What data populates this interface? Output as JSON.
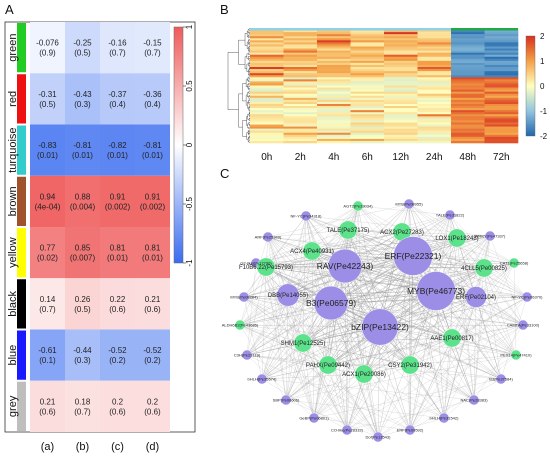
{
  "panels": {
    "a": "A",
    "b": "B",
    "c": "C"
  },
  "chart_data": [
    {
      "type": "heatmap",
      "panel": "A",
      "rows": [
        "green",
        "red",
        "turquoise",
        "brown",
        "yellow",
        "black",
        "blue",
        "grey"
      ],
      "row_colors": [
        "#22cc22",
        "#ee1111",
        "#33cccc",
        "#a0522d",
        "#ffff00",
        "#000000",
        "#1a1aff",
        "#bebebe"
      ],
      "columns": [
        "(a)",
        "(b)",
        "(c)",
        "(d)"
      ],
      "values": [
        [
          -0.076,
          -0.25,
          -0.16,
          -0.15
        ],
        [
          -0.31,
          -0.43,
          -0.37,
          -0.36
        ],
        [
          -0.83,
          -0.81,
          -0.82,
          -0.81
        ],
        [
          0.94,
          0.88,
          0.91,
          0.91
        ],
        [
          0.77,
          0.85,
          0.81,
          0.81
        ],
        [
          0.14,
          0.26,
          0.22,
          0.21
        ],
        [
          -0.61,
          -0.44,
          -0.52,
          -0.52
        ],
        [
          0.21,
          0.18,
          0.2,
          0.2
        ]
      ],
      "labels": [
        [
          "-0.076",
          "-0.25",
          "-0.16",
          "-0.15"
        ],
        [
          "-0.31",
          "-0.43",
          "-0.37",
          "-0.36"
        ],
        [
          "-0.83",
          "-0.81",
          "-0.82",
          "-0.81"
        ],
        [
          "0.94",
          "0.88",
          "0.91",
          "0.91"
        ],
        [
          "0.77",
          "0.85",
          "0.81",
          "0.81"
        ],
        [
          "0.14",
          "0.26",
          "0.22",
          "0.21"
        ],
        [
          "-0.61",
          "-0.44",
          "-0.52",
          "-0.52"
        ],
        [
          "0.21",
          "0.18",
          "0.2",
          "0.2"
        ]
      ],
      "pvalues": [
        [
          "(0.9)",
          "(0.5)",
          "(0.7)",
          "(0.7)"
        ],
        [
          "(0.5)",
          "(0.3)",
          "(0.4)",
          "(0.4)"
        ],
        [
          "(0.01)",
          "(0.01)",
          "(0.01)",
          "(0.01)"
        ],
        [
          "(4e-04)",
          "(0.004)",
          "(0.002)",
          "(0.002)"
        ],
        [
          "(0.02)",
          "(0.007)",
          "(0.01)",
          "(0.01)"
        ],
        [
          "(0.7)",
          "(0.5)",
          "(0.6)",
          "(0.6)"
        ],
        [
          "(0.1)",
          "(0.3)",
          "(0.2)",
          "(0.2)"
        ],
        [
          "(0.6)",
          "(0.7)",
          "(0.6)",
          "(0.6)"
        ]
      ],
      "colorbar": {
        "range": [
          -1,
          1
        ],
        "ticks": [
          "1",
          "0.5",
          "0",
          "-0.5",
          "-1"
        ],
        "tick_values": [
          1,
          0.5,
          0,
          -0.5,
          -1
        ],
        "low_color": "#3a6cf0",
        "mid_color": "#ffffff",
        "high_color": "#ef5b5b"
      }
    },
    {
      "type": "heatmap",
      "panel": "B",
      "x": [
        "0h",
        "2h",
        "4h",
        "6h",
        "12h",
        "24h",
        "48h",
        "72h"
      ],
      "colorbar": {
        "range": [
          -2,
          2
        ],
        "ticks": [
          "2",
          "1",
          "0",
          "-1",
          "-2"
        ],
        "tick_values": [
          2,
          1,
          0,
          -1,
          -2
        ]
      },
      "dendrogram": "left"
    },
    {
      "type": "network",
      "panel": "C",
      "hubs": [
        "ERF(Pe22321)",
        "MYB(Pe46773)",
        "RAV(Pe42243)",
        "B3(Pe06579)",
        "bZIP(Pe13422)"
      ],
      "nodes": [
        {
          "label": "ERF(Pe22321)",
          "color": "purple",
          "size": 3
        },
        {
          "label": "MYB(Pe46773)",
          "color": "purple",
          "size": 3
        },
        {
          "label": "RAV(Pe42243)",
          "color": "purple",
          "size": 2.6
        },
        {
          "label": "B3(Pe06579)",
          "color": "purple",
          "size": 2.6
        },
        {
          "label": "bZIP(Pe13422)",
          "color": "purple",
          "size": 2.8
        },
        {
          "label": "DBB(Pe14055)",
          "color": "purple",
          "size": 1.6
        },
        {
          "label": "ERF(Pe02104)",
          "color": "purple",
          "size": 1.5
        },
        {
          "label": "TALE(Pe37175)",
          "color": "green",
          "size": 1.3
        },
        {
          "label": "ACX2(Pe27283)",
          "color": "green",
          "size": 1.3
        },
        {
          "label": "ACX4(Pe40931)",
          "color": "green",
          "size": 1.3
        },
        {
          "label": "LOX1(Pe18248)",
          "color": "green",
          "size": 1.3
        },
        {
          "label": "F10B6.22(Pe15793)",
          "color": "green",
          "size": 1.3
        },
        {
          "label": "4CLL5(Pe00825)",
          "color": "green",
          "size": 1.3
        },
        {
          "label": "SHM1(Pe12525)",
          "color": "green",
          "size": 1.3
        },
        {
          "label": "AAE1(Pe00817)",
          "color": "green",
          "size": 1.3
        },
        {
          "label": "PAHX(Pe09442)",
          "color": "green",
          "size": 1.3
        },
        {
          "label": "CSY2(Pe31942)",
          "color": "green",
          "size": 1.3
        },
        {
          "label": "ACX1(Pe20086)",
          "color": "green",
          "size": 1.3
        },
        {
          "label": "AGT2(Pe33034)",
          "color": "green",
          "size": 0.8
        },
        {
          "label": "MYB(Pe08955)",
          "color": "purple",
          "size": 0.8
        },
        {
          "label": "NF-YC(Pe34318)",
          "color": "purple",
          "size": 0.8
        },
        {
          "label": "TALE(Pe31822)",
          "color": "purple",
          "size": 0.8
        },
        {
          "label": "ARF(Pe25349)",
          "color": "purple",
          "size": 0.8
        },
        {
          "label": "WRKY(Pe47337)",
          "color": "purple",
          "size": 0.8
        },
        {
          "label": "G2-like(Pe17790)",
          "color": "purple",
          "size": 0.8
        },
        {
          "label": "CAT1(Pe25658)",
          "color": "green",
          "size": 0.8
        },
        {
          "label": "MYB(Pe08204)",
          "color": "purple",
          "size": 0.8
        },
        {
          "label": "NF-YC(Pe06370)",
          "color": "purple",
          "size": 0.8
        },
        {
          "label": "ALDH6B2(Pe43685)",
          "color": "green",
          "size": 0.8
        },
        {
          "label": "CAMTA(Pe33100)",
          "color": "purple",
          "size": 0.8
        },
        {
          "label": "C3H(Pe22119)",
          "color": "purple",
          "size": 0.8
        },
        {
          "label": "PEX14(Pe47410)",
          "color": "green",
          "size": 0.8
        },
        {
          "label": "bHLH(Pe35574)",
          "color": "purple",
          "size": 0.8
        },
        {
          "label": "B3(Pe37584)",
          "color": "purple",
          "size": 0.8
        },
        {
          "label": "SBP(Pe08606)",
          "color": "purple",
          "size": 0.8
        },
        {
          "label": "NAC(Pe28383)",
          "color": "purple",
          "size": 0.8
        },
        {
          "label": "GeBP(Pe06801)",
          "color": "purple",
          "size": 0.8
        },
        {
          "label": "bHLH(Pe31542)",
          "color": "purple",
          "size": 0.8
        },
        {
          "label": "CO-like(Pe28332)",
          "color": "purple",
          "size": 0.8
        },
        {
          "label": "ERF(Pe09592)",
          "color": "purple",
          "size": 0.8
        },
        {
          "label": "Dof(Pe13543)",
          "color": "purple",
          "size": 0.8
        }
      ],
      "colors": {
        "purple": "#9c8ee6",
        "green": "#5ce28a",
        "edge": "#9a9a9a"
      }
    }
  ]
}
